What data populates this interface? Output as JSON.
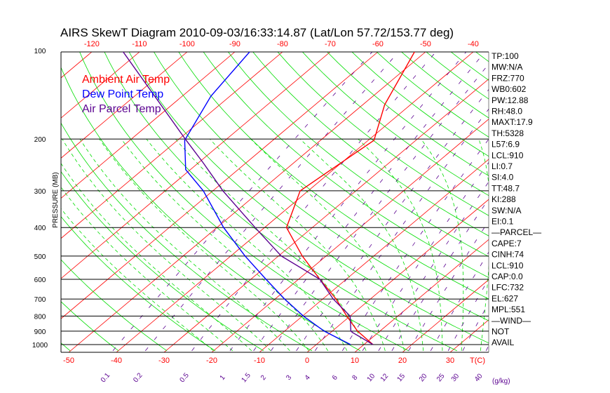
{
  "chart_data": {
    "type": "line",
    "subtype": "skew-t log-p",
    "title": "AIRS SkewT Diagram 2010-09-03/16:33:14.87 (Lat/Lon 57.72/153.77 deg)",
    "ylabel": "PRESSURE (MB)",
    "xlabel": "T(C)",
    "mixing_ratio_unit": "(g/kg)",
    "pressure_ticks": [
      100,
      200,
      300,
      400,
      500,
      600,
      700,
      800,
      900,
      1000
    ],
    "pressure_range": [
      100,
      1050
    ],
    "top_temp_ticks": [
      -120,
      -110,
      -100,
      -90,
      -80,
      -70,
      -60,
      -50,
      -40
    ],
    "bottom_temp_ticks": [
      -50,
      -40,
      -30,
      -20,
      -10,
      0,
      10,
      20,
      30
    ],
    "mixing_ratio_ticks": [
      "0.1",
      "0.2",
      "0.5",
      "1",
      "1.5",
      "2",
      "3",
      "4",
      "6",
      "8",
      "10",
      "12",
      "15",
      "20",
      "25",
      "30",
      "40"
    ],
    "isotherm_step": 10,
    "legend": [
      {
        "name": "Ambient Air Temp",
        "color": "#ff0000"
      },
      {
        "name": "Dew Point Temp",
        "color": "#0000ff"
      },
      {
        "name": "Air Parcel Temp",
        "color": "#5a0090"
      }
    ],
    "series": [
      {
        "name": "Ambient Air Temp",
        "color": "#ff0000",
        "pressure": [
          1000,
          900,
          800,
          700,
          600,
          500,
          400,
          300,
          202,
          153,
          100
        ],
        "temperature": [
          11.9,
          5.3,
          -0.7,
          -7.2,
          -15.5,
          -25.0,
          -35.4,
          -41.7,
          -38.8,
          -45.4,
          -52.5
        ]
      },
      {
        "name": "Dew Point Temp",
        "color": "#0000ff",
        "pressure": [
          1000,
          900,
          800,
          700,
          600,
          500,
          400,
          300,
          254,
          202,
          143,
          100
        ],
        "temperature": [
          7.2,
          -1.7,
          -9.8,
          -18.0,
          -26.8,
          -37.0,
          -48.6,
          -62.0,
          -71.0,
          -78.5,
          -84.0,
          -87.0
        ]
      },
      {
        "name": "Air Parcel Temp",
        "color": "#5a0090",
        "pressure": [
          1000,
          910,
          900,
          800,
          700,
          600,
          500,
          400,
          300,
          241,
          200,
          100
        ],
        "temperature": [
          11.9,
          4.6,
          3.9,
          0.0,
          -7.8,
          -15.5,
          -29.4,
          -42.0,
          -57.9,
          -69.0,
          -78.7,
          -114.0
        ]
      }
    ]
  },
  "indices": [
    "TP:100",
    "MW:N/A",
    "FRZ:770",
    "WB0:602",
    "PW:12.88",
    "RH:48.0",
    "MAXT:17.9",
    "TH:5328",
    "L57:6.9",
    "LCL:910",
    "LI:0.7",
    "SI:4.0",
    "TT:48.7",
    "KI:288",
    "SW:N/A",
    "EI:0.1",
    "—PARCEL—",
    "CAPE:7",
    "CINH:74",
    "LCL:910",
    "CAP:0.0",
    "LFC:732",
    "EL:627",
    "MPL:551",
    "—WIND—",
    "NOT",
    "AVAIL"
  ]
}
